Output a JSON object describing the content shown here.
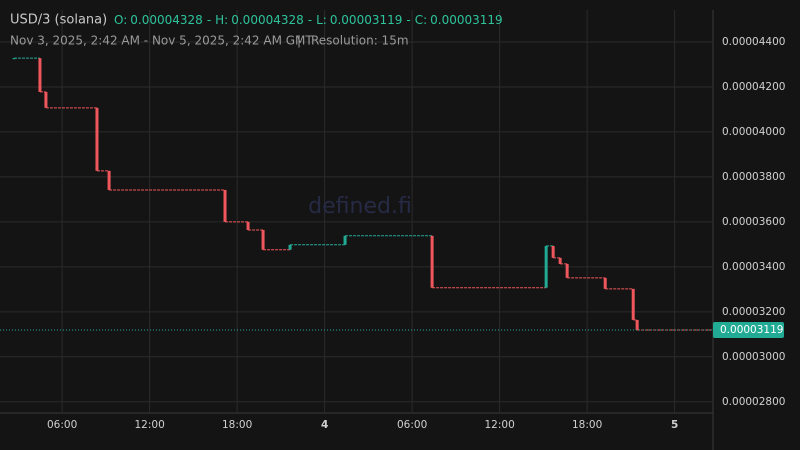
{
  "chart_data": {
    "type": "candlestick",
    "title": "USD/3 (solana)",
    "ohlc": [
      {
        "label": "O:",
        "value": 4.328e-05
      },
      {
        "label": "H:",
        "value": 4.328e-05
      },
      {
        "label": "L:",
        "value": 3.119e-05
      },
      {
        "label": "C:",
        "value": 3.119e-05
      }
    ],
    "ohlc_separator": "-",
    "subtitle": "Nov 3, 2025, 2:42 AM - Nov 5, 2025, 2:42 AM GMT",
    "subtitle_separator": "|",
    "resolution": "Resolution: 15m",
    "watermark": "defined.fi",
    "up_color": "#22ab94",
    "down_color": "#f0575c",
    "x": [
      2.7,
      4.48,
      4.89,
      8.39,
      9.22,
      17.17,
      18.75,
      19.78,
      21.63,
      25.4,
      31.37,
      39.19,
      39.67,
      40.15,
      40.63,
      43.24,
      45.16,
      45.43
    ],
    "open": [
      4.328e-05,
      4.328e-05,
      4.178e-05,
      4.107e-05,
      3.827e-05,
      3.742e-05,
      3.6e-05,
      3.564e-05,
      3.476e-05,
      3.498e-05,
      3.538e-05,
      3.307e-05,
      3.493e-05,
      3.44e-05,
      3.413e-05,
      3.351e-05,
      3.302e-05,
      3.164e-05
    ],
    "close": [
      4.328e-05,
      4.178e-05,
      4.107e-05,
      3.827e-05,
      3.742e-05,
      3.6e-05,
      3.564e-05,
      3.476e-05,
      3.498e-05,
      3.538e-05,
      3.307e-05,
      3.493e-05,
      3.44e-05,
      3.413e-05,
      3.351e-05,
      3.302e-05,
      3.164e-05,
      3.119e-05
    ],
    "last_price": 3.119e-05,
    "xlim": [
      2.7,
      50.7
    ],
    "xticks": [
      {
        "value": 6,
        "label": "06:00"
      },
      {
        "value": 12,
        "label": "12:00"
      },
      {
        "value": 18,
        "label": "18:00"
      },
      {
        "value": 24,
        "label": "4"
      },
      {
        "value": 30,
        "label": "06:00"
      },
      {
        "value": 36,
        "label": "12:00"
      },
      {
        "value": 42,
        "label": "18:00"
      },
      {
        "value": 48,
        "label": "5"
      }
    ],
    "ylim": [
      2.75e-05,
      4.52e-05
    ],
    "yticks": [
      {
        "value": 2.8e-05,
        "label": "0.00002800"
      },
      {
        "value": 3e-05,
        "label": "0.00003000"
      },
      {
        "value": 3.2e-05,
        "label": "0.00003200"
      },
      {
        "value": 3.4e-05,
        "label": "0.00003400"
      },
      {
        "value": 3.6e-05,
        "label": "0.00003600"
      },
      {
        "value": 3.8e-05,
        "label": "0.00003800"
      },
      {
        "value": 4e-05,
        "label": "0.00004000"
      },
      {
        "value": 4.2e-05,
        "label": "0.00004200"
      },
      {
        "value": 4.4e-05,
        "label": "0.00004400"
      }
    ],
    "grid": true
  }
}
